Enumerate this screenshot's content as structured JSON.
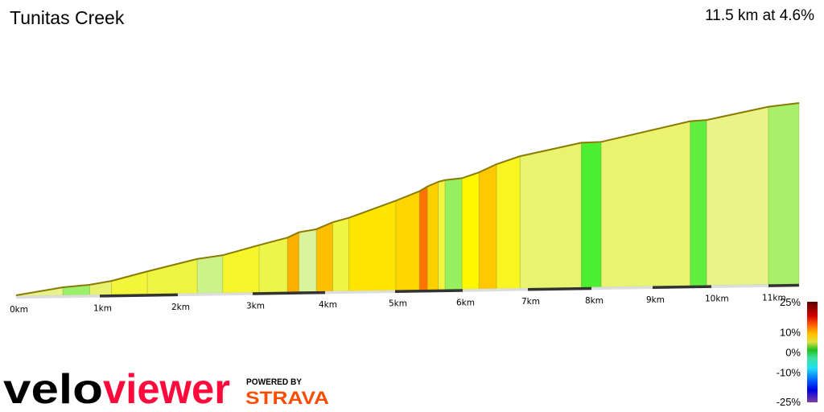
{
  "header": {
    "title": "Tunitas Creek",
    "summary": "11.5 km at 4.6%"
  },
  "chart_data": {
    "type": "area",
    "title": "Tunitas Creek",
    "subtitle": "11.5 km at 4.6%",
    "x_unit": "km",
    "x_ticks": [
      "0km",
      "1km",
      "2km",
      "3km",
      "4km",
      "5km",
      "6km",
      "7km",
      "8km",
      "9km",
      "10km",
      "11km"
    ],
    "xlim": [
      0,
      11.5
    ],
    "segments": [
      {
        "start": 0.0,
        "end": 0.56,
        "grade": 4.0,
        "color": "#e6f28a"
      },
      {
        "start": 0.56,
        "end": 0.88,
        "grade": 2.0,
        "color": "#9cef6a"
      },
      {
        "start": 0.88,
        "end": 1.15,
        "grade": 4.0,
        "color": "#e8f270"
      },
      {
        "start": 1.15,
        "end": 1.61,
        "grade": 6.0,
        "color": "#f3f53a"
      },
      {
        "start": 1.61,
        "end": 2.26,
        "grade": 5.5,
        "color": "#eef540"
      },
      {
        "start": 2.26,
        "end": 2.6,
        "grade": 3.0,
        "color": "#ccf28a"
      },
      {
        "start": 2.6,
        "end": 3.09,
        "grade": 6.0,
        "color": "#f5f52a"
      },
      {
        "start": 3.09,
        "end": 3.48,
        "grade": 5.5,
        "color": "#eef54a"
      },
      {
        "start": 3.48,
        "end": 3.64,
        "grade": 10.0,
        "color": "#fbb000"
      },
      {
        "start": 3.64,
        "end": 3.88,
        "grade": 3.5,
        "color": "#daf29a"
      },
      {
        "start": 3.88,
        "end": 4.11,
        "grade": 9.0,
        "color": "#fdc000"
      },
      {
        "start": 4.11,
        "end": 4.34,
        "grade": 5.5,
        "color": "#f0f542"
      },
      {
        "start": 4.34,
        "end": 5.01,
        "grade": 7.5,
        "color": "#ffe600"
      },
      {
        "start": 5.01,
        "end": 5.36,
        "grade": 8.0,
        "color": "#ffd500"
      },
      {
        "start": 5.36,
        "end": 5.48,
        "grade": 12.0,
        "color": "#ff7300"
      },
      {
        "start": 5.48,
        "end": 5.64,
        "grade": 8.5,
        "color": "#ffd000"
      },
      {
        "start": 5.64,
        "end": 5.74,
        "grade": 5.0,
        "color": "#f0f542"
      },
      {
        "start": 5.74,
        "end": 5.99,
        "grade": 2.0,
        "color": "#97f060"
      },
      {
        "start": 5.99,
        "end": 6.25,
        "grade": 6.5,
        "color": "#fff700"
      },
      {
        "start": 6.25,
        "end": 6.52,
        "grade": 9.0,
        "color": "#ffc800"
      },
      {
        "start": 6.52,
        "end": 6.88,
        "grade": 6.5,
        "color": "#f8f520"
      },
      {
        "start": 6.88,
        "end": 7.84,
        "grade": 4.0,
        "color": "#e8f370"
      },
      {
        "start": 7.84,
        "end": 8.16,
        "grade": 0.5,
        "color": "#4cee30"
      },
      {
        "start": 8.16,
        "end": 9.64,
        "grade": 4.0,
        "color": "#e9f370"
      },
      {
        "start": 9.64,
        "end": 9.92,
        "grade": 1.0,
        "color": "#60ee40"
      },
      {
        "start": 9.92,
        "end": 11.0,
        "grade": 3.5,
        "color": "#e8f388"
      },
      {
        "start": 11.0,
        "end": 11.5,
        "grade": 2.0,
        "color": "#a8f06a"
      }
    ],
    "legend": {
      "labels": [
        "25%",
        "10%",
        "0%",
        "-10%",
        "-25%"
      ],
      "values": [
        25,
        10,
        0,
        -10,
        -25
      ],
      "colors": [
        {
          "v": 25,
          "c": "#5a0000"
        },
        {
          "v": 18,
          "c": "#d40000"
        },
        {
          "v": 13,
          "c": "#ff6a00"
        },
        {
          "v": 9,
          "c": "#ffc000"
        },
        {
          "v": 5,
          "c": "#e0e040"
        },
        {
          "v": 1,
          "c": "#20c020"
        },
        {
          "v": -3,
          "c": "#40e0a0"
        },
        {
          "v": -8,
          "c": "#20e0f0"
        },
        {
          "v": -14,
          "c": "#0060ff"
        },
        {
          "v": -19,
          "c": "#0000e0"
        },
        {
          "v": -25,
          "c": "#8040a0"
        }
      ],
      "placement": "bottom-right"
    }
  },
  "branding": {
    "logo_left": "velo",
    "logo_right": "viewer",
    "powered_by": "POWERED BY",
    "strava": "STRAVA",
    "colors": {
      "velo": "#000000",
      "viewer": "#ff0a3c",
      "strava": "#fc4c02"
    }
  }
}
